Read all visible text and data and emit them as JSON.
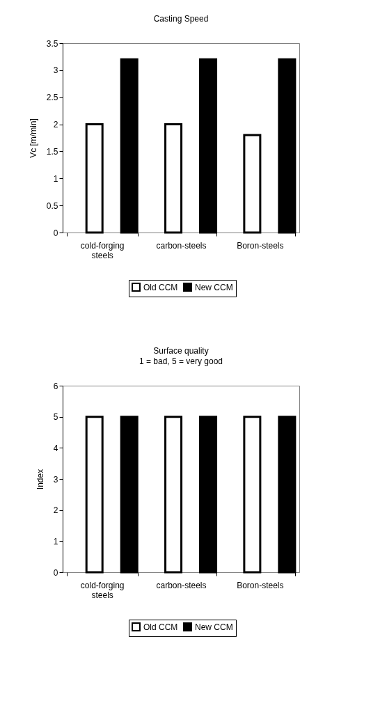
{
  "chart_data": [
    {
      "type": "bar",
      "title": "Casting Speed",
      "ylabel": "Vc [m/min]",
      "categories": [
        "cold-forging steels",
        "carbon-steels",
        "Boron-steels"
      ],
      "series": [
        {
          "name": "Old CCM",
          "color": "#ffffff",
          "values": [
            2,
            2,
            1.8
          ]
        },
        {
          "name": "New CCM",
          "color": "#000000",
          "values": [
            3.2,
            3.2,
            3.2
          ]
        }
      ],
      "ylim": [
        0,
        3.5
      ],
      "yticks": [
        0,
        0.5,
        1,
        1.5,
        2,
        2.5,
        3,
        3.5
      ],
      "legend": "bottom"
    },
    {
      "type": "bar",
      "title": "Surface quality",
      "subtitle": "1 = bad, 5 = very good",
      "ylabel": "Index",
      "categories": [
        "cold-forging steels",
        "carbon-steels",
        "Boron-steels"
      ],
      "series": [
        {
          "name": "Old CCM",
          "color": "#ffffff",
          "values": [
            5,
            5,
            5
          ]
        },
        {
          "name": "New CCM",
          "color": "#000000",
          "values": [
            5,
            5,
            5
          ]
        }
      ],
      "ylim": [
        0,
        6
      ],
      "yticks": [
        0,
        1,
        2,
        3,
        4,
        5,
        6
      ],
      "legend": "bottom"
    }
  ]
}
